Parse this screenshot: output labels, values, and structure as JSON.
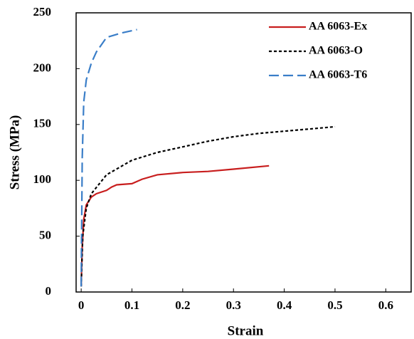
{
  "chart_data": {
    "type": "line",
    "x_label": "Strain",
    "y_label": "Stress (MPa)",
    "xlim": [
      -0.01,
      0.65
    ],
    "ylim": [
      0,
      250
    ],
    "xticks": [
      0,
      0.1,
      0.2,
      0.3,
      0.4,
      0.5,
      0.6
    ],
    "yticks": [
      0,
      50,
      100,
      150,
      200,
      250
    ],
    "legend": "upper right",
    "series": [
      {
        "name": "AA 6063-Ex",
        "color": "#c81e1e",
        "dash": "solid",
        "x": [
          0,
          0.002,
          0.005,
          0.01,
          0.02,
          0.03,
          0.05,
          0.06,
          0.07,
          0.1,
          0.12,
          0.15,
          0.2,
          0.25,
          0.3,
          0.37
        ],
        "values": [
          5,
          40,
          65,
          78,
          85,
          88,
          91,
          94,
          96,
          97,
          101,
          105,
          107,
          108,
          110,
          113
        ]
      },
      {
        "name": "AA 6063-O",
        "color": "#000000",
        "dash": "dotted",
        "x": [
          0,
          0.003,
          0.01,
          0.02,
          0.05,
          0.1,
          0.15,
          0.2,
          0.25,
          0.3,
          0.35,
          0.4,
          0.45,
          0.5
        ],
        "values": [
          5,
          50,
          75,
          88,
          105,
          118,
          125,
          130,
          135,
          139,
          142,
          144,
          146,
          148
        ]
      },
      {
        "name": "AA 6063-T6",
        "color": "#3a7ec8",
        "dash": "dashed",
        "x": [
          0,
          0.002,
          0.005,
          0.01,
          0.02,
          0.03,
          0.05,
          0.08,
          0.11
        ],
        "values": [
          5,
          120,
          170,
          190,
          205,
          215,
          228,
          232,
          235
        ]
      }
    ]
  }
}
